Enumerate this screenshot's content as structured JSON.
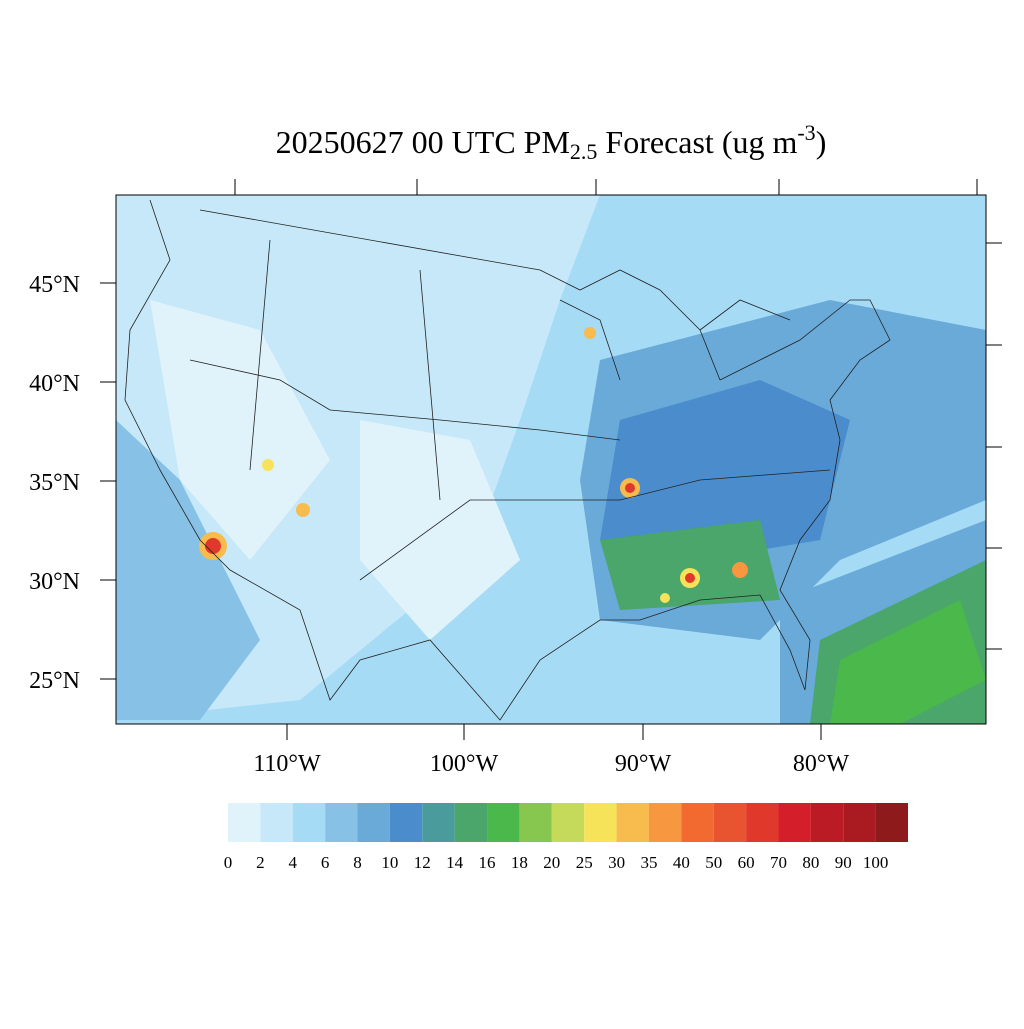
{
  "title_parts": [
    {
      "text": "20250627 00 UTC PM",
      "style": "normal"
    },
    {
      "text": "2.5",
      "style": "sub"
    },
    {
      "text": " Forecast (ug m",
      "style": "normal"
    },
    {
      "text": "-3",
      "style": "sup"
    },
    {
      "text": ")",
      "style": "normal"
    }
  ],
  "lat_labels": [
    "45°N",
    "40°N",
    "35°N",
    "30°N",
    "25°N"
  ],
  "lon_labels": [
    "110°W",
    "100°W",
    "90°W",
    "80°W"
  ],
  "colorbar": {
    "levels": [
      0,
      2,
      4,
      6,
      8,
      10,
      12,
      14,
      16,
      18,
      20,
      25,
      30,
      35,
      40,
      50,
      60,
      70,
      80,
      90,
      100
    ],
    "colors": [
      "#e0f3fb",
      "#c6e8f8",
      "#a6dbf5",
      "#87c1e6",
      "#69aad9",
      "#4a8ccc",
      "#4a9c9c",
      "#4aa66a",
      "#4ab84a",
      "#88c74f",
      "#c5d95a",
      "#f7e35a",
      "#f8bb4d",
      "#f7973f",
      "#f26a2f",
      "#e85430",
      "#e0392c",
      "#d41f2a",
      "#bb1b24",
      "#a91a21",
      "#8f1a1b"
    ]
  }
}
